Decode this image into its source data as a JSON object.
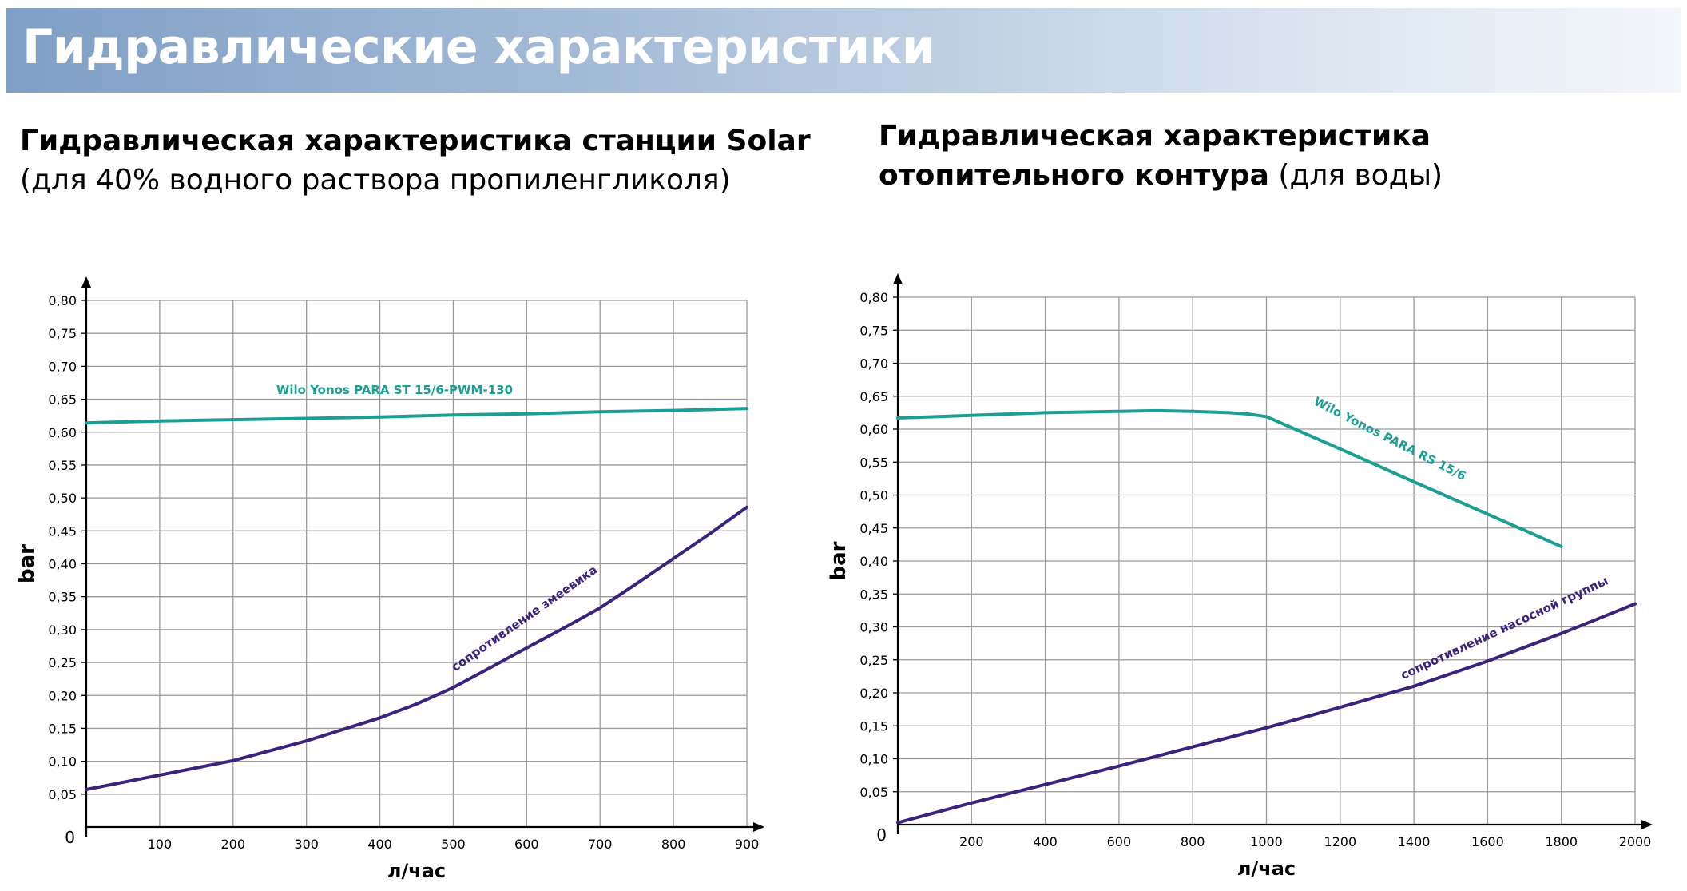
{
  "page": {
    "title": "Гидравлические характеристики",
    "left_heading": {
      "bold": "Гидравлическая характеристика станции Solar",
      "normal": "(для 40% водного раствора пропиленгликоля)"
    },
    "right_heading": {
      "line1_bold": "Гидравлическая характеристика",
      "line2_bold": "отопительного контура",
      "line2_normal": " (для воды)"
    }
  },
  "colors": {
    "teal": "#1c9e94",
    "purple": "#3a237d",
    "grid": "#9a9a9a",
    "axis": "#000000"
  },
  "chart_data": [
    {
      "type": "line",
      "xlabel": "л/час",
      "ylabel": "bar",
      "xlim": [
        0,
        900
      ],
      "ylim": [
        0,
        0.8
      ],
      "x_ticks": [
        100,
        200,
        300,
        400,
        500,
        600,
        700,
        800,
        900
      ],
      "x_tick_labels": [
        "100",
        "200",
        "300",
        "400",
        "500",
        "600",
        "700",
        "800",
        "900"
      ],
      "y_ticks": [
        0.05,
        0.1,
        0.15,
        0.2,
        0.25,
        0.3,
        0.35,
        0.4,
        0.45,
        0.5,
        0.55,
        0.6,
        0.65,
        0.7,
        0.75,
        0.8
      ],
      "y_tick_labels": [
        "0,05",
        "0,10",
        "0,15",
        "0,20",
        "0,25",
        "0,30",
        "0,35",
        "0,40",
        "0,45",
        "0,50",
        "0,55",
        "0,60",
        "0,65",
        "0,70",
        "0,75",
        "0,80"
      ],
      "origin_label": "0",
      "grid": true,
      "series": [
        {
          "name": "Wilo Yonos PARA ST 15/6-PWM-130",
          "color": "#1c9e94",
          "label_x": 420,
          "label_y": 0.658,
          "label_rotation": 0,
          "x": [
            0,
            100,
            200,
            300,
            400,
            500,
            600,
            700,
            800,
            900
          ],
          "y": [
            0.614,
            0.617,
            0.619,
            0.621,
            0.623,
            0.626,
            0.628,
            0.631,
            0.633,
            0.636
          ]
        },
        {
          "name": "сопротивление змеевика",
          "color": "#3a237d",
          "label_x": 600,
          "label_y": 0.312,
          "label_rotation": -35,
          "x": [
            0,
            100,
            200,
            300,
            400,
            450,
            500,
            550,
            600,
            650,
            700,
            750,
            800,
            850,
            900
          ],
          "y": [
            0.057,
            0.079,
            0.101,
            0.131,
            0.166,
            0.187,
            0.212,
            0.242,
            0.272,
            0.302,
            0.333,
            0.37,
            0.408,
            0.446,
            0.486
          ]
        }
      ]
    },
    {
      "type": "line",
      "xlabel": "л/час",
      "ylabel": "bar",
      "xlim": [
        0,
        2000
      ],
      "ylim": [
        0,
        0.8
      ],
      "x_ticks": [
        200,
        400,
        600,
        800,
        1000,
        1200,
        1400,
        1600,
        1800,
        2000
      ],
      "x_tick_labels": [
        "200",
        "400",
        "600",
        "800",
        "1000",
        "1200",
        "1400",
        "1600",
        "1800",
        "2000"
      ],
      "y_ticks": [
        0.05,
        0.1,
        0.15,
        0.2,
        0.25,
        0.3,
        0.35,
        0.4,
        0.45,
        0.5,
        0.55,
        0.6,
        0.65,
        0.7,
        0.75,
        0.8
      ],
      "y_tick_labels": [
        "0,05",
        "0,10",
        "0,15",
        "0,20",
        "0,25",
        "0,30",
        "0,35",
        "0,40",
        "0,45",
        "0,50",
        "0,55",
        "0,60",
        "0,65",
        "0,70",
        "0,75",
        "0,80"
      ],
      "origin_label": "0",
      "grid": true,
      "series": [
        {
          "name": "Wilo Yonos PARA RS 15/6",
          "color": "#1c9e94",
          "label_x": 1330,
          "label_y": 0.58,
          "label_rotation": 27,
          "x": [
            0,
            200,
            400,
            600,
            700,
            800,
            900,
            950,
            1000,
            1200,
            1400,
            1600,
            1800
          ],
          "y": [
            0.617,
            0.621,
            0.625,
            0.627,
            0.628,
            0.627,
            0.625,
            0.623,
            0.619,
            0.57,
            0.52,
            0.471,
            0.422
          ]
        },
        {
          "name": "сопротивление насосной группы",
          "color": "#3a237d",
          "label_x": 1650,
          "label_y": 0.293,
          "label_rotation": -25,
          "x": [
            0,
            200,
            400,
            600,
            800,
            1000,
            1200,
            1400,
            1600,
            1800,
            2000
          ],
          "y": [
            0.003,
            0.033,
            0.061,
            0.089,
            0.118,
            0.147,
            0.178,
            0.21,
            0.248,
            0.29,
            0.335
          ]
        }
      ]
    }
  ]
}
